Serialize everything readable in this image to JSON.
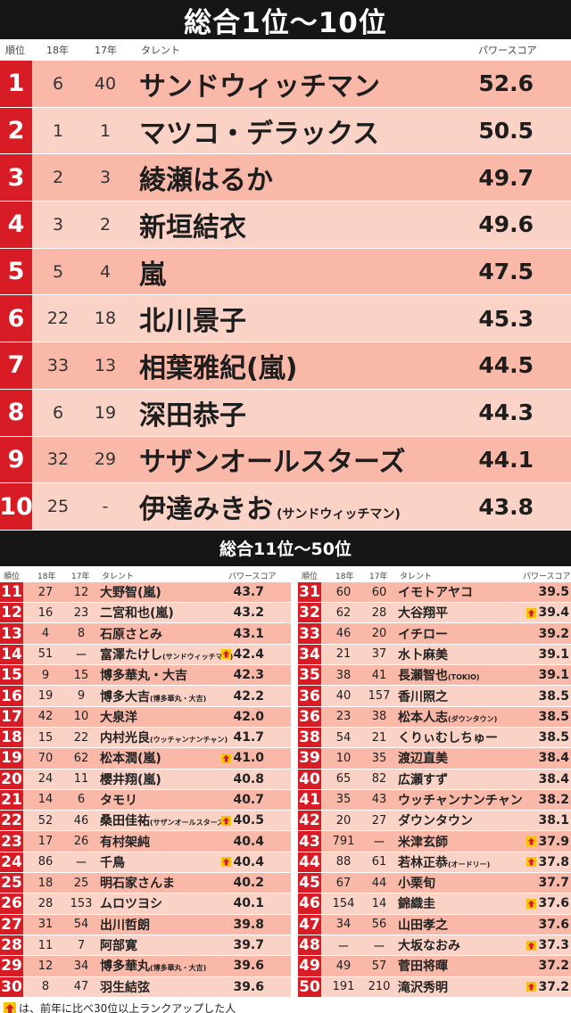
{
  "title": "総合1位～10位",
  "top_header": {
    "rank": "順位",
    "y18": "18年",
    "y17": "17年",
    "talent": "タレント",
    "score": "パワースコア"
  },
  "top": [
    {
      "rank": "1",
      "y18": "6",
      "y17": "40",
      "name": "サンドウィッチマン",
      "note": "",
      "score": "52.6"
    },
    {
      "rank": "2",
      "y18": "1",
      "y17": "1",
      "name": "マツコ・デラックス",
      "note": "",
      "score": "50.5"
    },
    {
      "rank": "3",
      "y18": "2",
      "y17": "3",
      "name": "綾瀬はるか",
      "note": "",
      "score": "49.7"
    },
    {
      "rank": "4",
      "y18": "3",
      "y17": "2",
      "name": "新垣結衣",
      "note": "",
      "score": "49.6"
    },
    {
      "rank": "5",
      "y18": "5",
      "y17": "4",
      "name": "嵐",
      "note": "",
      "score": "47.5"
    },
    {
      "rank": "6",
      "y18": "22",
      "y17": "18",
      "name": "北川景子",
      "note": "",
      "score": "45.3"
    },
    {
      "rank": "7",
      "y18": "33",
      "y17": "13",
      "name": "相葉雅紀(嵐)",
      "note": "",
      "score": "44.5"
    },
    {
      "rank": "8",
      "y18": "6",
      "y17": "19",
      "name": "深田恭子",
      "note": "",
      "score": "44.3"
    },
    {
      "rank": "9",
      "y18": "32",
      "y17": "29",
      "name": "サザンオールスターズ",
      "note": "",
      "score": "44.1"
    },
    {
      "rank": "10",
      "y18": "25",
      "y17": "-",
      "name": "伊達みきお",
      "note": "(サンドウィッチマン)",
      "score": "43.8"
    }
  ],
  "mid_title": "総合11位～50位",
  "sub_header": {
    "rank": "順位",
    "y18": "18年",
    "y17": "17年",
    "talent": "タレント",
    "score": "パワースコア"
  },
  "left": [
    {
      "rank": "11",
      "y18": "27",
      "y17": "12",
      "name": "大野智(嵐)",
      "note": "",
      "score": "43.7",
      "up": false
    },
    {
      "rank": "12",
      "y18": "16",
      "y17": "23",
      "name": "二宮和也(嵐)",
      "note": "",
      "score": "43.2",
      "up": false
    },
    {
      "rank": "13",
      "y18": "4",
      "y17": "8",
      "name": "石原さとみ",
      "note": "",
      "score": "43.1",
      "up": false
    },
    {
      "rank": "14",
      "y18": "51",
      "y17": "ー",
      "name": "富澤たけし",
      "note": "(サンドウィッチマン)",
      "score": "42.4",
      "up": true
    },
    {
      "rank": "15",
      "y18": "9",
      "y17": "15",
      "name": "博多華丸・大吉",
      "note": "",
      "score": "42.3",
      "up": false
    },
    {
      "rank": "16",
      "y18": "19",
      "y17": "9",
      "name": "博多大吉",
      "note": "(博多華丸・大吉)",
      "score": "42.2",
      "up": false
    },
    {
      "rank": "17",
      "y18": "42",
      "y17": "10",
      "name": "大泉洋",
      "note": "",
      "score": "42.0",
      "up": false
    },
    {
      "rank": "18",
      "y18": "15",
      "y17": "22",
      "name": "内村光良",
      "note": "(ウッチャンナンチャン)",
      "score": "41.7",
      "up": false
    },
    {
      "rank": "19",
      "y18": "70",
      "y17": "62",
      "name": "松本潤(嵐)",
      "note": "",
      "score": "41.0",
      "up": true
    },
    {
      "rank": "20",
      "y18": "24",
      "y17": "11",
      "name": "櫻井翔(嵐)",
      "note": "",
      "score": "40.8",
      "up": false
    },
    {
      "rank": "21",
      "y18": "14",
      "y17": "6",
      "name": "タモリ",
      "note": "",
      "score": "40.7",
      "up": false
    },
    {
      "rank": "22",
      "y18": "52",
      "y17": "46",
      "name": "桑田佳祐",
      "note": "(サザンオールスターズ)",
      "score": "40.5",
      "up": true
    },
    {
      "rank": "23",
      "y18": "17",
      "y17": "26",
      "name": "有村架純",
      "note": "",
      "score": "40.4",
      "up": false
    },
    {
      "rank": "24",
      "y18": "86",
      "y17": "ー",
      "name": "千鳥",
      "note": "",
      "score": "40.4",
      "up": true
    },
    {
      "rank": "25",
      "y18": "18",
      "y17": "25",
      "name": "明石家さんま",
      "note": "",
      "score": "40.2",
      "up": false
    },
    {
      "rank": "26",
      "y18": "28",
      "y17": "153",
      "name": "ムロツヨシ",
      "note": "",
      "score": "40.1",
      "up": false
    },
    {
      "rank": "27",
      "y18": "31",
      "y17": "54",
      "name": "出川哲朗",
      "note": "",
      "score": "39.8",
      "up": false
    },
    {
      "rank": "28",
      "y18": "11",
      "y17": "7",
      "name": "阿部寛",
      "note": "",
      "score": "39.7",
      "up": false
    },
    {
      "rank": "29",
      "y18": "12",
      "y17": "34",
      "name": "博多華丸",
      "note": "(博多華丸・大吉)",
      "score": "39.6",
      "up": false
    },
    {
      "rank": "30",
      "y18": "8",
      "y17": "47",
      "name": "羽生結弦",
      "note": "",
      "score": "39.6",
      "up": false
    }
  ],
  "right": [
    {
      "rank": "31",
      "y18": "60",
      "y17": "60",
      "name": "イモトアヤコ",
      "note": "",
      "score": "39.5",
      "up": false
    },
    {
      "rank": "32",
      "y18": "62",
      "y17": "28",
      "name": "大谷翔平",
      "note": "",
      "score": "39.4",
      "up": true
    },
    {
      "rank": "33",
      "y18": "46",
      "y17": "20",
      "name": "イチロー",
      "note": "",
      "score": "39.2",
      "up": false
    },
    {
      "rank": "34",
      "y18": "21",
      "y17": "37",
      "name": "水卜麻美",
      "note": "",
      "score": "39.1",
      "up": false
    },
    {
      "rank": "35",
      "y18": "38",
      "y17": "41",
      "name": "長瀬智也",
      "note": "(TOKIO)",
      "score": "39.1",
      "up": false
    },
    {
      "rank": "36",
      "y18": "40",
      "y17": "157",
      "name": "香川照之",
      "note": "",
      "score": "38.5",
      "up": false
    },
    {
      "rank": "36",
      "y18": "23",
      "y17": "38",
      "name": "松本人志",
      "note": "(ダウンタウン)",
      "score": "38.5",
      "up": false
    },
    {
      "rank": "38",
      "y18": "54",
      "y17": "21",
      "name": "くりぃむしちゅー",
      "note": "",
      "score": "38.5",
      "up": false
    },
    {
      "rank": "39",
      "y18": "10",
      "y17": "35",
      "name": "渡辺直美",
      "note": "",
      "score": "38.4",
      "up": false
    },
    {
      "rank": "40",
      "y18": "65",
      "y17": "82",
      "name": "広瀬すず",
      "note": "",
      "score": "38.4",
      "up": false
    },
    {
      "rank": "41",
      "y18": "35",
      "y17": "43",
      "name": "ウッチャンナンチャン",
      "note": "",
      "score": "38.2",
      "up": false
    },
    {
      "rank": "42",
      "y18": "20",
      "y17": "27",
      "name": "ダウンタウン",
      "note": "",
      "score": "38.1",
      "up": false
    },
    {
      "rank": "43",
      "y18": "791",
      "y17": "ー",
      "name": "米津玄師",
      "note": "",
      "score": "37.9",
      "up": true
    },
    {
      "rank": "44",
      "y18": "88",
      "y17": "61",
      "name": "若林正恭",
      "note": "(オードリー)",
      "score": "37.8",
      "up": true
    },
    {
      "rank": "45",
      "y18": "67",
      "y17": "44",
      "name": "小栗旬",
      "note": "",
      "score": "37.7",
      "up": false
    },
    {
      "rank": "46",
      "y18": "154",
      "y17": "14",
      "name": "錦織圭",
      "note": "",
      "score": "37.6",
      "up": true
    },
    {
      "rank": "47",
      "y18": "34",
      "y17": "56",
      "name": "山田孝之",
      "note": "",
      "score": "37.6",
      "up": false
    },
    {
      "rank": "48",
      "y18": "ー",
      "y17": "ー",
      "name": "大坂なおみ",
      "note": "",
      "score": "37.3",
      "up": true
    },
    {
      "rank": "49",
      "y18": "49",
      "y17": "57",
      "name": "菅田将暉",
      "note": "",
      "score": "37.2",
      "up": false
    },
    {
      "rank": "50",
      "y18": "191",
      "y17": "210",
      "name": "滝沢秀明",
      "note": "",
      "score": "37.2",
      "up": true
    }
  ],
  "footer_note": "は、前年に比べ30位以上ランクアップした人",
  "colors": {
    "rank_red": "#d81c25",
    "row_dark": "#f9b8a8",
    "row_light": "#fbd2c6",
    "arrow_yellow": "#f6c400"
  }
}
